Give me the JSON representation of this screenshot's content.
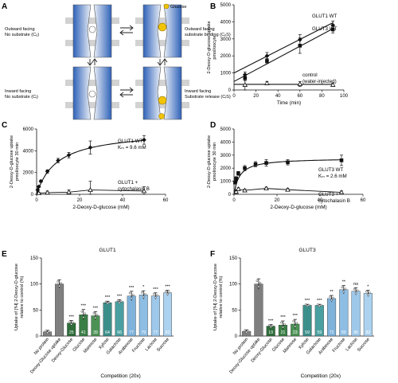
{
  "panels": {
    "A": {
      "letter": "A",
      "states": [
        {
          "name": "Outward facing",
          "detail": "No substrate (Cₒ)"
        },
        {
          "name": "Outward facing",
          "detail": "substrate binding (CₒS)"
        },
        {
          "name": "Inward facing",
          "detail": "No substrate (Cᵢ)"
        },
        {
          "name": "Inward facing",
          "detail": "Substrate release (CᵢS)"
        }
      ],
      "substrate_label": "Glucose",
      "colors": {
        "membrane": "#c9c9c9",
        "transporter": "#2f62b8",
        "glucose": "#f2c400"
      }
    }
  },
  "chart_data": [
    {
      "id": "B",
      "letter": "B",
      "type": "line",
      "xlabel": "Time (min)",
      "ylabel": [
        "2-Deoxy-D-glucose uptake",
        "pmol/oocyte"
      ],
      "xlim": [
        0,
        100
      ],
      "ylim": [
        0,
        5000
      ],
      "xticks": [
        0,
        20,
        40,
        60,
        80,
        100
      ],
      "yticks": [
        0,
        1000,
        2000,
        3000,
        4000,
        5000
      ],
      "series": [
        {
          "name": "GLUT1 WT",
          "marker": "diamond",
          "x": [
            10,
            30,
            60,
            90
          ],
          "y": [
            900,
            2000,
            2950,
            3800
          ],
          "err": [
            150,
            200,
            300,
            250
          ],
          "fit": [
            [
              0,
              1000
            ],
            [
              90,
              3950
            ]
          ]
        },
        {
          "name": "GLUT3 WT",
          "marker": "square",
          "x": [
            10,
            30,
            60,
            90
          ],
          "y": [
            700,
            1700,
            2600,
            3550
          ],
          "err": [
            150,
            150,
            450,
            200
          ],
          "fit": [
            [
              0,
              500
            ],
            [
              90,
              3600
            ]
          ]
        },
        {
          "name": "control",
          "name2": "(water-injected)",
          "marker": "triangle",
          "x": [
            10,
            30,
            60,
            90
          ],
          "y": [
            300,
            400,
            350,
            300
          ],
          "err": [
            300,
            100,
            150,
            100
          ],
          "fit": [
            [
              0,
              330
            ],
            [
              90,
              330
            ]
          ]
        }
      ]
    },
    {
      "id": "C",
      "letter": "C",
      "type": "line",
      "xlabel": "2-Deoxy-D-glucose (mM)",
      "ylabel": [
        "2-Deoxy-D-glucose uptake",
        "pmol/oocyte 30 min"
      ],
      "xlim": [
        0,
        60
      ],
      "ylim": [
        0,
        6000
      ],
      "xticks": [
        0,
        20,
        40,
        60
      ],
      "yticks": [
        0,
        2000,
        4000,
        6000
      ],
      "series": [
        {
          "name": "GLUT1 WT",
          "sub": "Kₘ = 9.6 mM",
          "marker": "diamond",
          "x": [
            0.5,
            1,
            2,
            5,
            10,
            15,
            25,
            50
          ],
          "y": [
            400,
            700,
            1200,
            2100,
            3100,
            3600,
            4300,
            5000
          ],
          "err": [
            50,
            80,
            100,
            150,
            200,
            250,
            600,
            400
          ],
          "fit_vmax": 5900,
          "fit_km": 9.6
        },
        {
          "name": "GLUT1 +",
          "name2": "cytochalasin B",
          "marker": "triangle",
          "x": [
            1,
            5,
            15,
            25,
            50
          ],
          "y": [
            100,
            150,
            200,
            400,
            300
          ],
          "err": [
            100,
            150,
            200,
            800,
            400
          ]
        }
      ]
    },
    {
      "id": "D",
      "letter": "D",
      "type": "line",
      "xlabel": "2-Deoxy-D-glucose (mM)",
      "ylabel": [
        "2-Deoxy-D-glucose uptake",
        "pmol/oocyte 30 min"
      ],
      "xlim": [
        0,
        60
      ],
      "ylim": [
        0,
        5000
      ],
      "xticks": [
        0,
        20,
        40,
        60
      ],
      "yticks": [
        0,
        1000,
        2000,
        3000,
        4000,
        5000
      ],
      "series": [
        {
          "name": "GLUT3 WT",
          "sub": "Kₘ = 2.6 mM",
          "marker": "square",
          "x": [
            0.5,
            1,
            2,
            5,
            10,
            15,
            25,
            50
          ],
          "y": [
            900,
            1200,
            1600,
            2000,
            2300,
            2400,
            2450,
            2600
          ],
          "err": [
            100,
            150,
            150,
            200,
            200,
            250,
            200,
            400
          ],
          "fit_vmax": 2780,
          "fit_km": 2.6
        },
        {
          "name": "GLUT3 +",
          "name2": "cytochalasin B",
          "marker": "triangle",
          "x": [
            1,
            2,
            5,
            15,
            25,
            50
          ],
          "y": [
            200,
            400,
            300,
            450,
            350,
            150
          ],
          "err": [
            150,
            100,
            100,
            100,
            100,
            100
          ]
        }
      ]
    },
    {
      "id": "E",
      "letter": "E",
      "type": "bar",
      "title": "GLUT1",
      "xlabel": "Competition (20x)",
      "ylabel": [
        "Uptake of [³H] 2-Deoxy-D-glucose",
        "relative to control (%)"
      ],
      "ylim": [
        0,
        150
      ],
      "yticks": [
        0,
        50,
        100,
        150
      ],
      "categories": [
        "No protein",
        "Deoxy-Glucose uptake",
        "Deoxy-Glucose",
        "Glucose",
        "Mannose",
        "Xylose",
        "Galactose",
        "Arabinose",
        "Fructose",
        "Lactose",
        "Sucrose"
      ],
      "values": [
        8,
        100,
        25,
        41,
        39,
        64,
        66,
        77,
        79,
        77,
        83
      ],
      "bar_labels": [
        "",
        "",
        "25",
        "41",
        "39",
        "64",
        "66",
        "77",
        "79",
        "77",
        "83"
      ],
      "err": [
        3,
        8,
        5,
        10,
        8,
        3,
        4,
        9,
        8,
        6,
        5
      ],
      "significance": [
        "",
        "",
        "***",
        "***",
        "***",
        "***",
        "***",
        "***",
        "*",
        "***",
        "***"
      ],
      "colors": [
        "#7f7f7f",
        "#7f7f7f",
        "#2e6d3a",
        "#3a7f46",
        "#4c9255",
        "#3b8f8a",
        "#4aa0a0",
        "#7fb3dc",
        "#8ebee4",
        "#9dc8ea",
        "#acd2ef"
      ]
    },
    {
      "id": "F",
      "letter": "F",
      "type": "bar",
      "title": "GLUT3",
      "xlabel": "Competition (20x)",
      "ylabel": [
        "Uptake of [³H] 2-Deoxy-D-glucose",
        "relative to control (%)"
      ],
      "ylim": [
        0,
        150
      ],
      "yticks": [
        0,
        50,
        100,
        150
      ],
      "categories": [
        "No protein",
        "Deoxy-Glucose uptake",
        "Deoxy-Glucose",
        "Glucose",
        "Mannose",
        "Xylose",
        "Galactose",
        "Arabinose",
        "Fructose",
        "Lactose",
        "Sucrose"
      ],
      "values": [
        9,
        100,
        19,
        21,
        23,
        59,
        59,
        72,
        89,
        86,
        82
      ],
      "bar_labels": [
        "",
        "",
        "19",
        "21",
        "23",
        "59",
        "59",
        "72",
        "89",
        "86",
        "82"
      ],
      "err": [
        3,
        10,
        3,
        8,
        9,
        2,
        2,
        6,
        8,
        7,
        6
      ],
      "significance": [
        "",
        "",
        "***",
        "***",
        "***",
        "***",
        "***",
        "**",
        "**",
        "ns",
        "*"
      ],
      "colors": [
        "#7f7f7f",
        "#7f7f7f",
        "#2e6d3a",
        "#3a7f46",
        "#4c9255",
        "#3b8f8a",
        "#4aa0a0",
        "#7fb3dc",
        "#8ebee4",
        "#9dc8ea",
        "#acd2ef"
      ]
    }
  ]
}
